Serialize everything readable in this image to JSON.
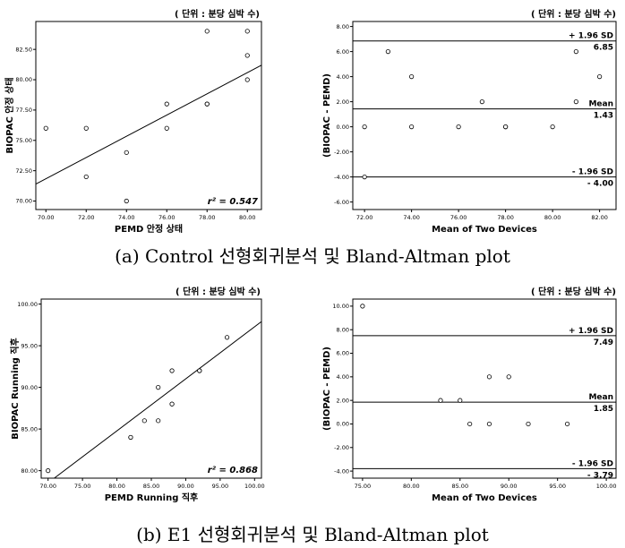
{
  "captions": {
    "a": "(a)  Control  선형회귀분석  및  Bland-Altman  plot",
    "b": "(b)  E1  선형회귀분석  및  Bland-Altman  plot"
  },
  "chart_data": [
    {
      "id": "control-regression",
      "type": "scatter",
      "title": "",
      "unit_note": "( 단위 : 분당 심박 수)",
      "xlabel": "PEMD 안정 상태",
      "ylabel": "BIOPAC 안정 상태",
      "xlim": [
        69.5,
        80.7
      ],
      "ylim": [
        69.3,
        84.8
      ],
      "xticks": [
        70,
        72,
        74,
        76,
        78,
        80
      ],
      "yticks": [
        70,
        72.5,
        75,
        77.5,
        80,
        82.5
      ],
      "points": [
        {
          "x": 70,
          "y": 76
        },
        {
          "x": 72,
          "y": 76
        },
        {
          "x": 72,
          "y": 72
        },
        {
          "x": 74,
          "y": 74
        },
        {
          "x": 74,
          "y": 70
        },
        {
          "x": 76,
          "y": 78
        },
        {
          "x": 76,
          "y": 76
        },
        {
          "x": 78,
          "y": 78
        },
        {
          "x": 78,
          "y": 78
        },
        {
          "x": 78,
          "y": 84
        },
        {
          "x": 80,
          "y": 84
        },
        {
          "x": 80,
          "y": 82
        },
        {
          "x": 80,
          "y": 80
        }
      ],
      "fit_line": {
        "x1": 69.5,
        "y1": 71.4,
        "x2": 80.7,
        "y2": 81.2
      },
      "r2_label": "r² = 0.547",
      "grid": false
    },
    {
      "id": "control-bland-altman",
      "type": "scatter",
      "title": "",
      "unit_note": "( 단위 : 분당 심박 수)",
      "xlabel": "Mean of Two Devices",
      "ylabel": "(BIOPAC - PEMD)",
      "xlim": [
        71.5,
        82.7
      ],
      "ylim": [
        -6.6,
        8.4
      ],
      "xticks": [
        72,
        74,
        76,
        78,
        80,
        82
      ],
      "yticks": [
        -6,
        -4,
        -2,
        0,
        2,
        4,
        6,
        8
      ],
      "points": [
        {
          "x": 72,
          "y": 0
        },
        {
          "x": 72,
          "y": -4
        },
        {
          "x": 73,
          "y": 6
        },
        {
          "x": 74,
          "y": 4
        },
        {
          "x": 74,
          "y": 0
        },
        {
          "x": 76,
          "y": 0
        },
        {
          "x": 77,
          "y": 2
        },
        {
          "x": 78,
          "y": 0
        },
        {
          "x": 78,
          "y": 0
        },
        {
          "x": 80,
          "y": 0
        },
        {
          "x": 81,
          "y": 6
        },
        {
          "x": 81,
          "y": 2
        },
        {
          "x": 82,
          "y": 4
        }
      ],
      "hlines": [
        {
          "y": 6.85,
          "label": "+ 1.96 SD",
          "value": "6.85"
        },
        {
          "y": 1.43,
          "label": "Mean",
          "value": "1.43"
        },
        {
          "y": -4.0,
          "label": "- 1.96 SD",
          "value": "- 4.00"
        }
      ],
      "grid": false
    },
    {
      "id": "e1-regression",
      "type": "scatter",
      "title": "",
      "unit_note": "( 단위 : 분당 심박 수)",
      "xlabel": "PEMD Running 직후",
      "ylabel": "BIOPAC Running 직후",
      "xlim": [
        69,
        101
      ],
      "ylim": [
        79.1,
        100.6
      ],
      "xticks": [
        70,
        75,
        80,
        85,
        90,
        95,
        100
      ],
      "yticks": [
        80,
        85,
        90,
        95,
        100
      ],
      "points": [
        {
          "x": 70,
          "y": 80
        },
        {
          "x": 82,
          "y": 84
        },
        {
          "x": 82,
          "y": 84
        },
        {
          "x": 84,
          "y": 86
        },
        {
          "x": 86,
          "y": 86
        },
        {
          "x": 86,
          "y": 90
        },
        {
          "x": 88,
          "y": 88
        },
        {
          "x": 88,
          "y": 88
        },
        {
          "x": 88,
          "y": 92
        },
        {
          "x": 92,
          "y": 92
        },
        {
          "x": 92,
          "y": 92
        },
        {
          "x": 96,
          "y": 96
        }
      ],
      "fit_line": {
        "x1": 70.9,
        "y1": 79.1,
        "x2": 101,
        "y2": 97.9
      },
      "r2_label": "r² = 0.868",
      "grid": false
    },
    {
      "id": "e1-bland-altman",
      "type": "scatter",
      "title": "",
      "unit_note": "( 단위 : 분당 심박 수)",
      "xlabel": "Mean of Two Devices",
      "ylabel": "(BIOPAC - PEMD)",
      "xlim": [
        74,
        101
      ],
      "ylim": [
        -4.6,
        10.6
      ],
      "xticks": [
        75,
        80,
        85,
        90,
        95,
        100
      ],
      "yticks": [
        -4,
        -2,
        0,
        2,
        4,
        6,
        8,
        10
      ],
      "points": [
        {
          "x": 75,
          "y": 10
        },
        {
          "x": 83,
          "y": 2
        },
        {
          "x": 85,
          "y": 2
        },
        {
          "x": 86,
          "y": 0
        },
        {
          "x": 88,
          "y": 4
        },
        {
          "x": 88,
          "y": 0
        },
        {
          "x": 90,
          "y": 4
        },
        {
          "x": 92,
          "y": 0
        },
        {
          "x": 96,
          "y": 0
        }
      ],
      "hlines": [
        {
          "y": 7.49,
          "label": "+ 1.96 SD",
          "value": "7.49"
        },
        {
          "y": 1.85,
          "label": "Mean",
          "value": "1.85"
        },
        {
          "y": -3.79,
          "label": "- 1.96 SD",
          "value": "- 3.79"
        }
      ],
      "grid": false
    }
  ]
}
